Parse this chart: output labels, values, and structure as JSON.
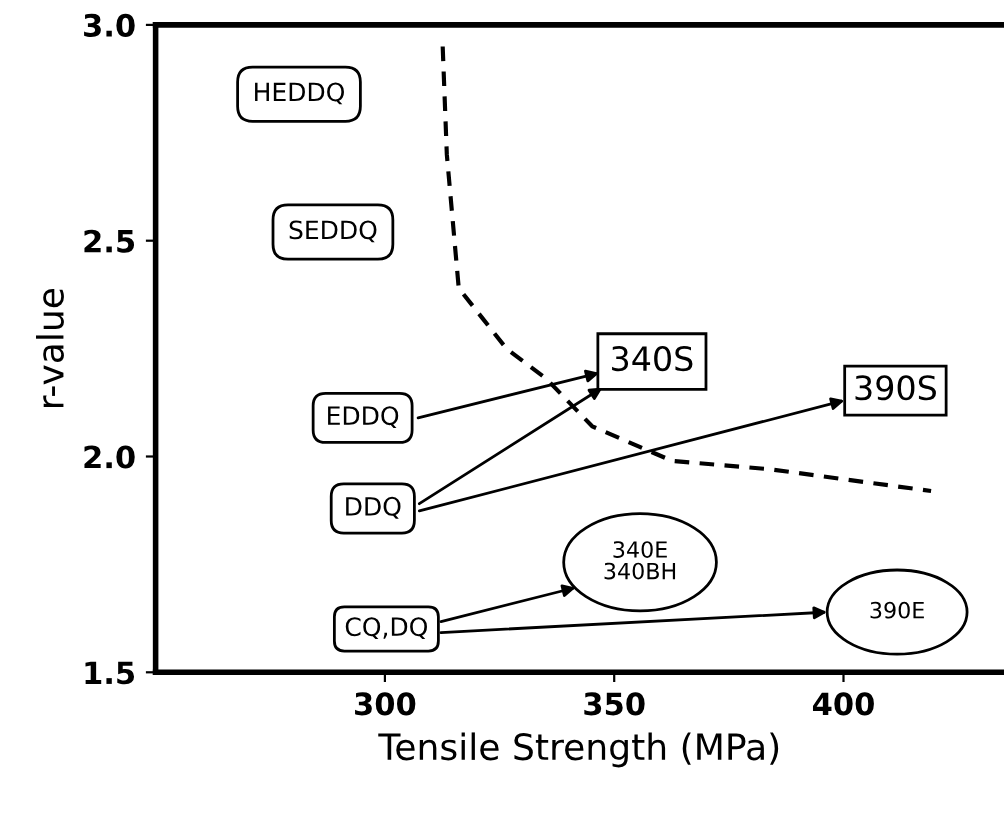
{
  "chart_data": {
    "type": "line",
    "xlabel": "Tensile Strength (MPa)",
    "ylabel": "r-value",
    "xlim": [
      250,
      435
    ],
    "ylim": [
      1.5,
      3.0
    ],
    "xticks": [
      300,
      350,
      400
    ],
    "yticks": [
      {
        "value": 1.5,
        "label": "1.5"
      },
      {
        "value": 2.0,
        "label": "2.0"
      },
      {
        "value": 2.5,
        "label": "2.5"
      },
      {
        "value": 3.0,
        "label": "3.0"
      }
    ],
    "grid": false,
    "series": [
      {
        "line_style": "dashed",
        "color": "#000000",
        "x": [
          312.6,
          313.5,
          316.1,
          321.3,
          326.5,
          335.2,
          345.2,
          353.9,
          362.6,
          384.3,
          419.1
        ],
        "values": [
          2.95,
          2.7,
          2.39,
          2.32,
          2.25,
          2.18,
          2.07,
          2.03,
          1.99,
          1.97,
          1.92
        ]
      }
    ],
    "annotations": [
      "HEDDQ",
      "SEDDQ",
      "EDDQ",
      "DDQ",
      "CQ,DQ",
      "340S",
      "390S",
      "340E\n340BH",
      "390E"
    ]
  }
}
